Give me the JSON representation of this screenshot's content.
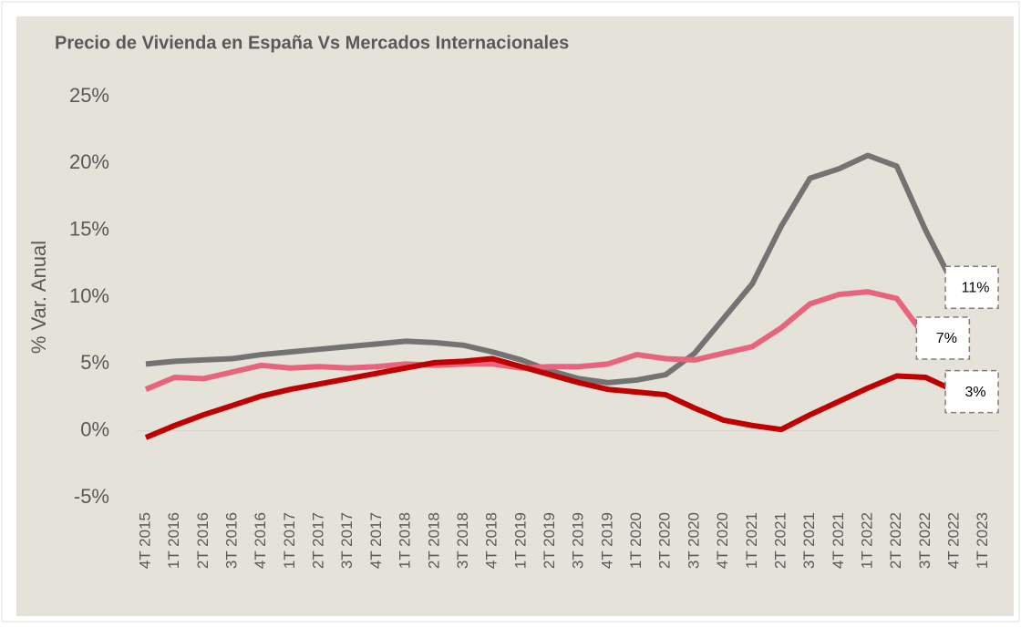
{
  "chart_data": {
    "type": "line",
    "title": "Precio de Vivienda en España Vs Mercados Internacionales",
    "y_label": "% Var. Anual",
    "categories": [
      "4T 2015",
      "1T 2016",
      "2T 2016",
      "3T 2016",
      "4T 2016",
      "1T 2017",
      "2T 2017",
      "3T 2017",
      "4T 2017",
      "1T 2018",
      "2T 2018",
      "3T 2018",
      "4T 2018",
      "1T 2019",
      "2T 2019",
      "3T 2019",
      "4T 2019",
      "1T 2020",
      "2T 2020",
      "3T 2020",
      "4T 2020",
      "1T 2021",
      "2T 2021",
      "3T 2021",
      "4T 2021",
      "1T 2022",
      "2T 2022",
      "3T 2022",
      "4T 2022",
      "1T 2023"
    ],
    "series": [
      {
        "color": "#737373",
        "values": [
          5.0,
          5.2,
          5.3,
          5.4,
          5.7,
          5.9,
          6.1,
          6.3,
          6.5,
          6.7,
          6.6,
          6.4,
          5.9,
          5.3,
          4.5,
          3.9,
          3.6,
          3.8,
          4.2,
          5.8,
          8.4,
          11.0,
          15.3,
          18.9,
          19.6,
          20.6,
          19.8,
          15.0,
          10.8,
          null
        ],
        "value_labels": [
          null,
          null,
          null,
          null,
          null,
          null,
          null,
          null,
          null,
          null,
          null,
          null,
          null,
          null,
          null,
          null,
          null,
          null,
          null,
          null,
          null,
          null,
          null,
          null,
          null,
          null,
          null,
          null,
          "11%",
          null
        ]
      },
      {
        "color": "#e8647c",
        "values": [
          3.1,
          4.0,
          3.9,
          4.4,
          4.9,
          4.7,
          4.8,
          4.7,
          4.8,
          5.0,
          4.9,
          5.0,
          5.0,
          4.7,
          4.8,
          4.8,
          5.0,
          5.7,
          5.4,
          5.3,
          5.8,
          6.3,
          7.7,
          9.5,
          10.2,
          10.4,
          9.9,
          7.0,
          null,
          null
        ],
        "value_labels": [
          null,
          null,
          null,
          null,
          null,
          null,
          null,
          null,
          null,
          null,
          null,
          null,
          null,
          null,
          null,
          null,
          null,
          null,
          null,
          null,
          null,
          null,
          null,
          null,
          null,
          null,
          null,
          "7%",
          null,
          null
        ]
      },
      {
        "color": "#c00000",
        "values": [
          -0.5,
          0.4,
          1.2,
          1.9,
          2.6,
          3.1,
          3.5,
          3.9,
          4.3,
          4.7,
          5.1,
          5.2,
          5.4,
          4.8,
          4.2,
          3.6,
          3.1,
          2.9,
          2.7,
          1.7,
          0.8,
          0.4,
          0.1,
          1.2,
          2.2,
          3.2,
          4.1,
          4.0,
          3.0,
          null
        ],
        "value_labels": [
          null,
          null,
          null,
          null,
          null,
          null,
          null,
          null,
          null,
          null,
          null,
          null,
          null,
          null,
          null,
          null,
          null,
          null,
          null,
          null,
          null,
          null,
          null,
          null,
          null,
          null,
          null,
          null,
          "3%",
          null
        ]
      }
    ],
    "ylim": [
      -5,
      25
    ],
    "yticks": [
      {
        "value": -5,
        "label": "-5%"
      },
      {
        "value": 0,
        "label": "0%"
      },
      {
        "value": 5,
        "label": "5%"
      },
      {
        "value": 10,
        "label": "10%"
      },
      {
        "value": 15,
        "label": "15%"
      },
      {
        "value": 20,
        "label": "20%"
      },
      {
        "value": 25,
        "label": "25%"
      }
    ],
    "grid": false
  }
}
